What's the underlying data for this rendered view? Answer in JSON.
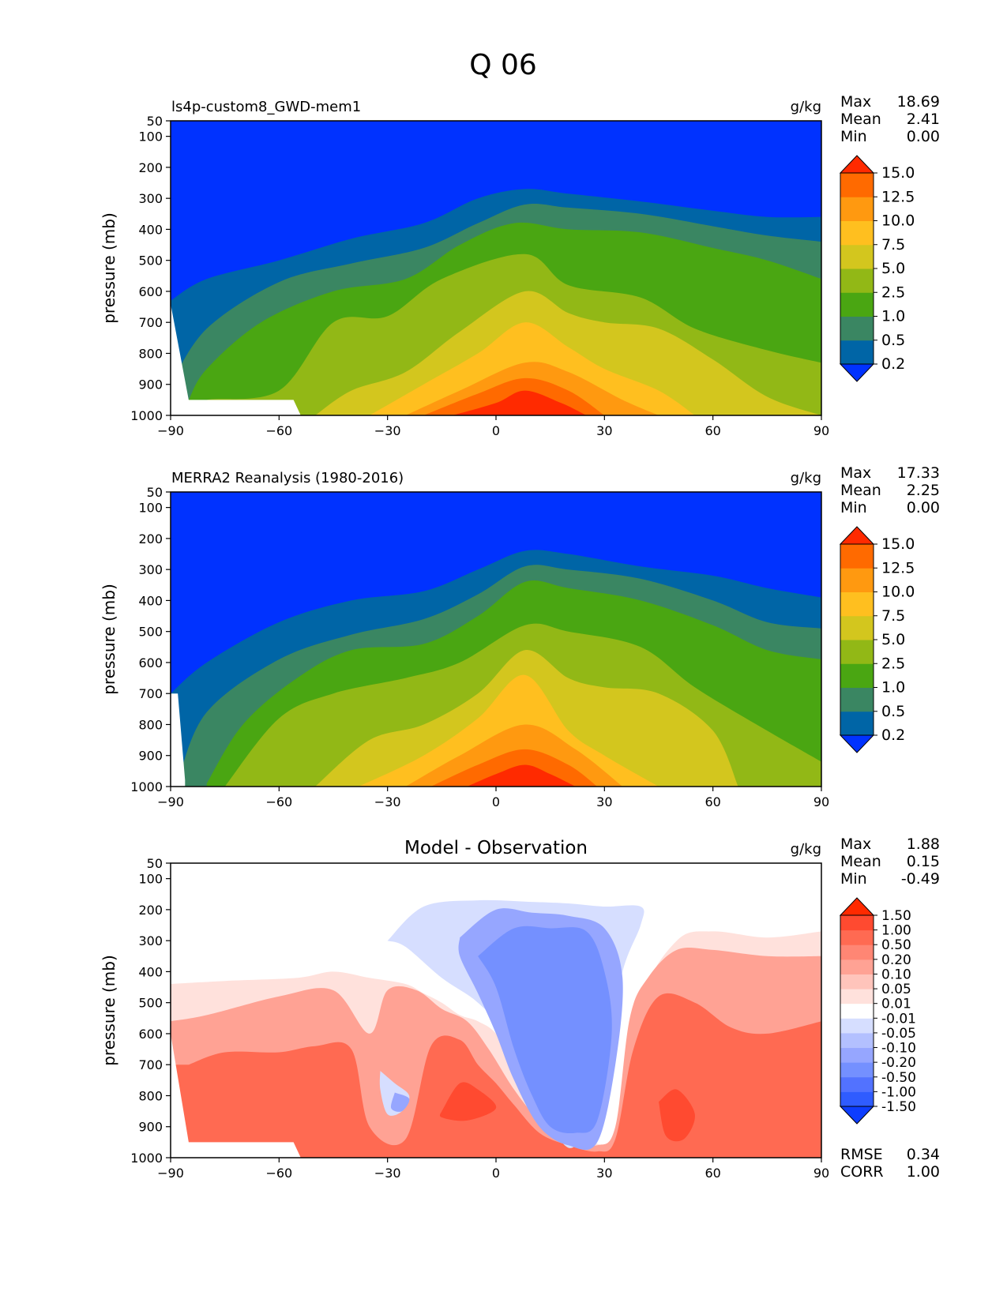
{
  "figure": {
    "title": "Q 06"
  },
  "colors": {
    "abs_levels": [
      "#0032ff",
      "#0065a6",
      "#3a8662",
      "#4aa612",
      "#92b816",
      "#d3c61e",
      "#ffbf1f",
      "#ff9910",
      "#ff6a00",
      "#ff2a00"
    ],
    "diff_levels": [
      "#0d3dff",
      "#2f5cff",
      "#5272ff",
      "#7490ff",
      "#96a6ff",
      "#b3c0ff",
      "#d6deff",
      "#ffffff",
      "#ffe1dc",
      "#ffc4bb",
      "#ffa294",
      "#ff8674",
      "#ff6a52",
      "#ff4a30",
      "#ff2a00"
    ]
  },
  "chart_data": [
    {
      "type": "contour",
      "title": "ls4p-custom8_GWD-mem1",
      "units": "g/kg",
      "xlabel": "",
      "ylabel": "pressure (mb)",
      "x_ticks": [
        "−90",
        "−60",
        "−30",
        "0",
        "30",
        "60",
        "90"
      ],
      "y_ticks": [
        "50",
        "100",
        "200",
        "300",
        "400",
        "500",
        "600",
        "700",
        "800",
        "900",
        "1000"
      ],
      "xlim": [
        -90,
        90
      ],
      "ylim": [
        1000,
        50
      ],
      "stats": {
        "max_label": "Max",
        "max": "18.69",
        "mean_label": "Mean",
        "mean": "2.41",
        "min_label": "Min",
        "min": "0.00"
      },
      "colorbar_levels": [
        "15.0",
        "12.5",
        "10.0",
        "7.5",
        "5.0",
        "2.5",
        "1.0",
        "0.5",
        "0.2"
      ],
      "contour_lines": [
        {
          "level": 0.2,
          "x": [
            -90,
            -80,
            -60,
            -40,
            -20,
            -5,
            8,
            20,
            40,
            60,
            75,
            90
          ],
          "y": [
            630,
            560,
            500,
            430,
            380,
            300,
            270,
            285,
            310,
            340,
            360,
            360
          ]
        },
        {
          "level": 0.5,
          "x": [
            -90,
            -80,
            -60,
            -40,
            -20,
            -5,
            8,
            20,
            40,
            60,
            75,
            90
          ],
          "y": [
            900,
            720,
            570,
            510,
            460,
            380,
            320,
            330,
            350,
            390,
            420,
            440
          ]
        },
        {
          "level": 1.0,
          "x": [
            -85,
            -80,
            -65,
            -45,
            -25,
            -10,
            5,
            20,
            40,
            60,
            75,
            90
          ],
          "y": [
            950,
            850,
            700,
            600,
            560,
            450,
            380,
            400,
            410,
            460,
            500,
            560
          ]
        },
        {
          "level": 2.5,
          "x": [
            -85,
            -80,
            -60,
            -45,
            -30,
            -15,
            8,
            20,
            40,
            55,
            75,
            90
          ],
          "y": [
            980,
            950,
            920,
            700,
            680,
            560,
            480,
            580,
            620,
            720,
            790,
            830
          ]
        },
        {
          "level": 5.0,
          "x": [
            -50,
            -40,
            -25,
            -10,
            8,
            20,
            30,
            45,
            60,
            75,
            90
          ],
          "y": [
            1000,
            920,
            860,
            730,
            600,
            670,
            700,
            720,
            820,
            940,
            1000
          ]
        },
        {
          "level": 7.5,
          "x": [
            -35,
            -20,
            -5,
            8,
            20,
            30,
            45,
            55
          ],
          "y": [
            1000,
            900,
            800,
            700,
            780,
            850,
            920,
            1000
          ]
        },
        {
          "level": 10.0,
          "x": [
            -25,
            -10,
            8,
            20,
            35,
            45
          ],
          "y": [
            1000,
            920,
            830,
            860,
            950,
            1000
          ]
        },
        {
          "level": 12.5,
          "x": [
            -20,
            -5,
            8,
            20,
            30
          ],
          "y": [
            1000,
            930,
            880,
            920,
            1000
          ]
        },
        {
          "level": 15.0,
          "x": [
            -12,
            0,
            8,
            18,
            25
          ],
          "y": [
            1000,
            960,
            920,
            960,
            1000
          ]
        }
      ]
    },
    {
      "type": "contour",
      "title": "MERRA2 Reanalysis (1980-2016)",
      "units": "g/kg",
      "xlabel": "",
      "ylabel": "pressure (mb)",
      "x_ticks": [
        "−90",
        "−60",
        "−30",
        "0",
        "30",
        "60",
        "90"
      ],
      "y_ticks": [
        "50",
        "100",
        "200",
        "300",
        "400",
        "500",
        "600",
        "700",
        "800",
        "900",
        "1000"
      ],
      "xlim": [
        -90,
        90
      ],
      "ylim": [
        1000,
        50
      ],
      "stats": {
        "max_label": "Max",
        "max": "17.33",
        "mean_label": "Mean",
        "mean": "2.25",
        "min_label": "Min",
        "min": "0.00"
      },
      "colorbar_levels": [
        "15.0",
        "12.5",
        "10.0",
        "7.5",
        "5.0",
        "2.5",
        "1.0",
        "0.5",
        "0.2"
      ],
      "contour_lines": [
        {
          "level": 0.2,
          "x": [
            -90,
            -80,
            -60,
            -40,
            -20,
            -5,
            8,
            20,
            40,
            60,
            75,
            90
          ],
          "y": [
            700,
            600,
            470,
            400,
            370,
            300,
            240,
            250,
            290,
            320,
            360,
            390
          ]
        },
        {
          "level": 0.5,
          "x": [
            -88,
            -80,
            -60,
            -40,
            -20,
            -5,
            8,
            20,
            40,
            60,
            75,
            90
          ],
          "y": [
            980,
            760,
            590,
            510,
            460,
            380,
            290,
            300,
            330,
            400,
            470,
            490
          ]
        },
        {
          "level": 1.0,
          "x": [
            -80,
            -70,
            -55,
            -40,
            -20,
            -5,
            8,
            20,
            40,
            60,
            75,
            90
          ],
          "y": [
            990,
            800,
            650,
            560,
            540,
            450,
            340,
            360,
            400,
            480,
            560,
            590
          ]
        },
        {
          "level": 2.5,
          "x": [
            -75,
            -60,
            -45,
            -25,
            -10,
            8,
            20,
            40,
            55,
            75,
            90
          ],
          "y": [
            1000,
            780,
            700,
            650,
            600,
            480,
            500,
            550,
            680,
            820,
            920
          ]
        },
        {
          "level": 5.0,
          "x": [
            -50,
            -35,
            -20,
            -5,
            8,
            20,
            30,
            45,
            60,
            67
          ],
          "y": [
            1000,
            850,
            800,
            700,
            560,
            650,
            680,
            700,
            820,
            1000
          ]
        },
        {
          "level": 7.5,
          "x": [
            -38,
            -20,
            -5,
            8,
            20,
            30,
            45
          ],
          "y": [
            1000,
            900,
            780,
            640,
            820,
            900,
            1000
          ]
        },
        {
          "level": 10.0,
          "x": [
            -25,
            -10,
            8,
            22,
            35
          ],
          "y": [
            1000,
            900,
            800,
            880,
            1000
          ]
        },
        {
          "level": 12.5,
          "x": [
            -18,
            -5,
            8,
            20,
            28
          ],
          "y": [
            1000,
            930,
            880,
            930,
            1000
          ]
        },
        {
          "level": 15.0,
          "x": [
            -8,
            0,
            8,
            15,
            22
          ],
          "y": [
            1000,
            960,
            930,
            960,
            1000
          ]
        }
      ]
    },
    {
      "type": "contour",
      "title": "Model - Observation",
      "units": "g/kg",
      "xlabel": "",
      "ylabel": "pressure (mb)",
      "x_ticks": [
        "−90",
        "−60",
        "−30",
        "0",
        "30",
        "60",
        "90"
      ],
      "y_ticks": [
        "50",
        "100",
        "200",
        "300",
        "400",
        "500",
        "600",
        "700",
        "800",
        "900",
        "1000"
      ],
      "xlim": [
        -90,
        90
      ],
      "ylim": [
        1000,
        50
      ],
      "stats": {
        "max_label": "Max",
        "max": "1.88",
        "mean_label": "Mean",
        "mean": "0.15",
        "min_label": "Min",
        "min": "-0.49"
      },
      "colorbar_levels": [
        "1.50",
        "1.00",
        "0.50",
        "0.20",
        "0.10",
        "0.05",
        "0.01",
        "-0.01",
        "-0.05",
        "-0.10",
        "-0.20",
        "-0.50",
        "-1.00",
        "-1.50"
      ],
      "metrics": {
        "rmse_label": "RMSE",
        "rmse": "0.34",
        "corr_label": "CORR",
        "corr": "1.00"
      },
      "positive_regions": [
        {
          "level": 0.01,
          "x": [
            -90,
            -75,
            -55,
            -45,
            -35,
            -25,
            -20,
            -15,
            -10,
            -5,
            0,
            5,
            10,
            20,
            30,
            35,
            40,
            50,
            60,
            75,
            90
          ],
          "y": [
            440,
            430,
            420,
            400,
            420,
            440,
            470,
            500,
            540,
            560,
            600,
            700,
            800,
            900,
            960,
            900,
            500,
            300,
            270,
            290,
            270
          ]
        },
        {
          "level": 0.1,
          "x": [
            -90,
            -80,
            -60,
            -45,
            -35,
            -30,
            -22,
            -15,
            -8,
            -2,
            5,
            12,
            20,
            28,
            33,
            37,
            42,
            50,
            60,
            75,
            90
          ],
          "y": [
            560,
            540,
            480,
            460,
            600,
            460,
            460,
            520,
            560,
            650,
            780,
            880,
            940,
            960,
            900,
            550,
            420,
            330,
            330,
            350,
            350
          ]
        },
        {
          "level": 0.5,
          "x": [
            -85,
            -75,
            -60,
            -50,
            -40,
            -35,
            -25,
            -18,
            -10,
            -5,
            0,
            5,
            12,
            20,
            28,
            33,
            38,
            45,
            55,
            65,
            75,
            90
          ],
          "y": [
            700,
            660,
            660,
            640,
            650,
            900,
            940,
            640,
            620,
            700,
            760,
            830,
            920,
            960,
            980,
            940,
            650,
            480,
            500,
            580,
            600,
            560
          ]
        },
        {
          "level": 1.0,
          "x": [
            -15,
            -10,
            -5,
            0,
            -8,
            -15
          ],
          "y": [
            850,
            760,
            780,
            840,
            880,
            870
          ]
        },
        {
          "level": 1.0,
          "x": [
            45,
            50,
            55,
            52,
            47
          ],
          "y": [
            820,
            780,
            860,
            940,
            930
          ]
        }
      ],
      "negative_regions": [
        {
          "level": -0.01,
          "x": [
            -30,
            -20,
            -5,
            10,
            20,
            30,
            40,
            40,
            35,
            30,
            22,
            15,
            8,
            2,
            -5,
            -15,
            -25,
            -30
          ],
          "y": [
            300,
            190,
            170,
            175,
            180,
            190,
            190,
            250,
            400,
            700,
            960,
            900,
            800,
            600,
            500,
            420,
            320,
            300
          ]
        },
        {
          "level": -0.1,
          "x": [
            -10,
            0,
            10,
            20,
            30,
            35,
            33,
            28,
            20,
            12,
            5,
            0,
            -5,
            -10
          ],
          "y": [
            290,
            200,
            210,
            220,
            260,
            420,
            700,
            950,
            960,
            900,
            750,
            600,
            470,
            350
          ]
        },
        {
          "level": -0.2,
          "x": [
            -5,
            5,
            15,
            25,
            30,
            32,
            28,
            22,
            15,
            10,
            5,
            0
          ],
          "y": [
            350,
            260,
            260,
            270,
            400,
            600,
            880,
            920,
            900,
            800,
            650,
            450
          ]
        },
        {
          "level": -0.01,
          "x": [
            -32,
            -28,
            -24,
            -26,
            -30,
            -32
          ],
          "y": [
            720,
            760,
            800,
            850,
            860,
            780
          ]
        },
        {
          "level": -0.1,
          "x": [
            -28,
            -24,
            -26,
            -29
          ],
          "y": [
            790,
            810,
            850,
            840
          ]
        }
      ]
    }
  ]
}
